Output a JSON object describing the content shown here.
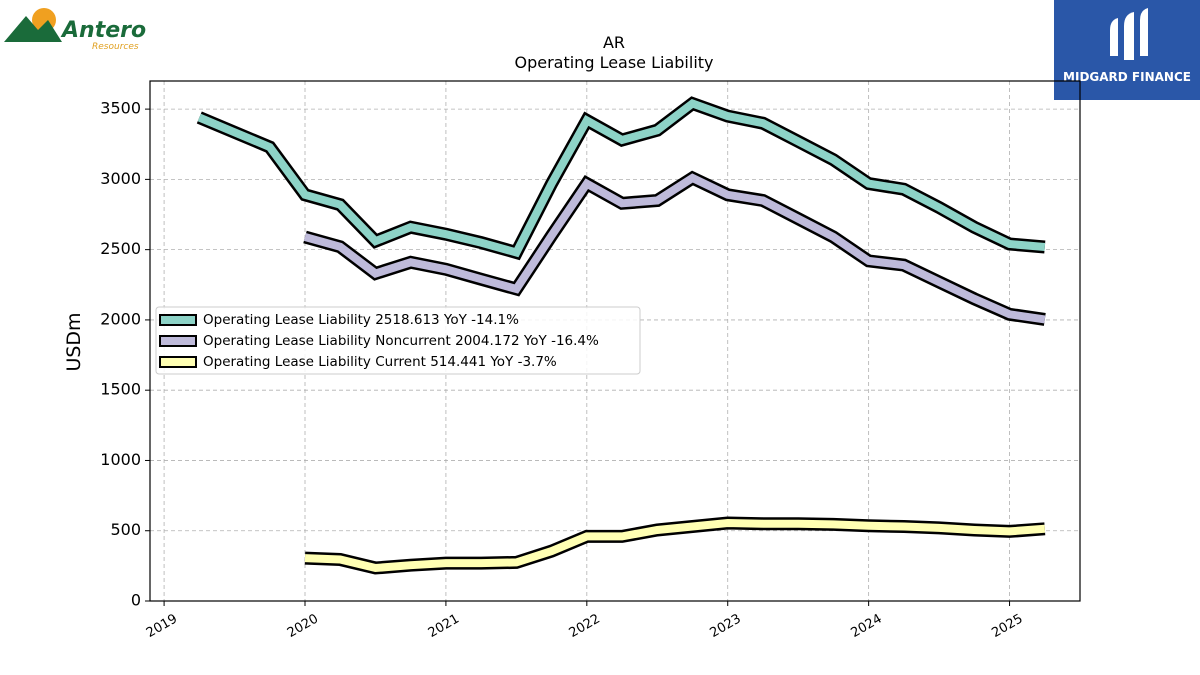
{
  "logos": {
    "left": {
      "name": "Antero",
      "subtitle": "Resources"
    },
    "right": {
      "name": "MIDGARD FINANCE"
    }
  },
  "chart_data": {
    "type": "line",
    "title": "AR",
    "subtitle": "Operating Lease Liability",
    "ylabel": "USDm",
    "xlabel": "",
    "ylim": [
      0,
      3700
    ],
    "xlim": [
      2018.9,
      2025.5
    ],
    "yticks": [
      0,
      500,
      1000,
      1500,
      2000,
      2500,
      3000,
      3500
    ],
    "xticks": [
      "2019",
      "2020",
      "2021",
      "2022",
      "2023",
      "2024",
      "2025"
    ],
    "grid": true,
    "legend_position": "center-left",
    "series": [
      {
        "name": "Operating Lease Liability",
        "legend": "Operating Lease Liability  2518.613 YoY -14.1%",
        "color": "#8dd3c7",
        "x": [
          2019.25,
          2019.75,
          2020.0,
          2020.25,
          2020.5,
          2020.75,
          2021.0,
          2021.25,
          2021.5,
          2021.75,
          2022.0,
          2022.25,
          2022.5,
          2022.75,
          2023.0,
          2023.25,
          2023.5,
          2023.75,
          2024.0,
          2024.25,
          2024.5,
          2024.75,
          2025.0,
          2025.25
        ],
        "values": [
          3440,
          3230,
          2890,
          2820,
          2560,
          2660,
          2610,
          2550,
          2480,
          2970,
          3420,
          3280,
          3350,
          3540,
          3450,
          3400,
          3270,
          3140,
          2970,
          2930,
          2800,
          2660,
          2540,
          2519
        ]
      },
      {
        "name": "Operating Lease Liability Noncurrent",
        "legend": "Operating Lease Liability Noncurrent  2004.172 YoY -16.4%",
        "color": "#bebada",
        "x": [
          2020.0,
          2020.25,
          2020.5,
          2020.75,
          2021.0,
          2021.25,
          2021.5,
          2021.75,
          2022.0,
          2022.25,
          2022.5,
          2022.75,
          2023.0,
          2023.25,
          2023.5,
          2023.75,
          2024.0,
          2024.25,
          2024.5,
          2024.75,
          2025.0,
          2025.25
        ],
        "values": [
          2590,
          2520,
          2330,
          2410,
          2360,
          2290,
          2220,
          2600,
          2970,
          2830,
          2850,
          3010,
          2890,
          2850,
          2720,
          2590,
          2420,
          2390,
          2270,
          2150,
          2040,
          2004
        ]
      },
      {
        "name": "Operating Lease Liability Current",
        "legend": "Operating Lease Liability Current  514.441 YoY -3.7%",
        "color": "#ffffb3",
        "x": [
          2020.0,
          2020.25,
          2020.5,
          2020.75,
          2021.0,
          2021.25,
          2021.5,
          2021.75,
          2022.0,
          2022.25,
          2022.5,
          2022.75,
          2023.0,
          2023.25,
          2023.5,
          2023.75,
          2024.0,
          2024.25,
          2024.5,
          2024.75,
          2025.0,
          2025.25
        ],
        "values": [
          305,
          295,
          235,
          255,
          270,
          270,
          275,
          355,
          460,
          460,
          505,
          530,
          555,
          550,
          550,
          545,
          535,
          530,
          520,
          505,
          495,
          514
        ]
      }
    ]
  }
}
